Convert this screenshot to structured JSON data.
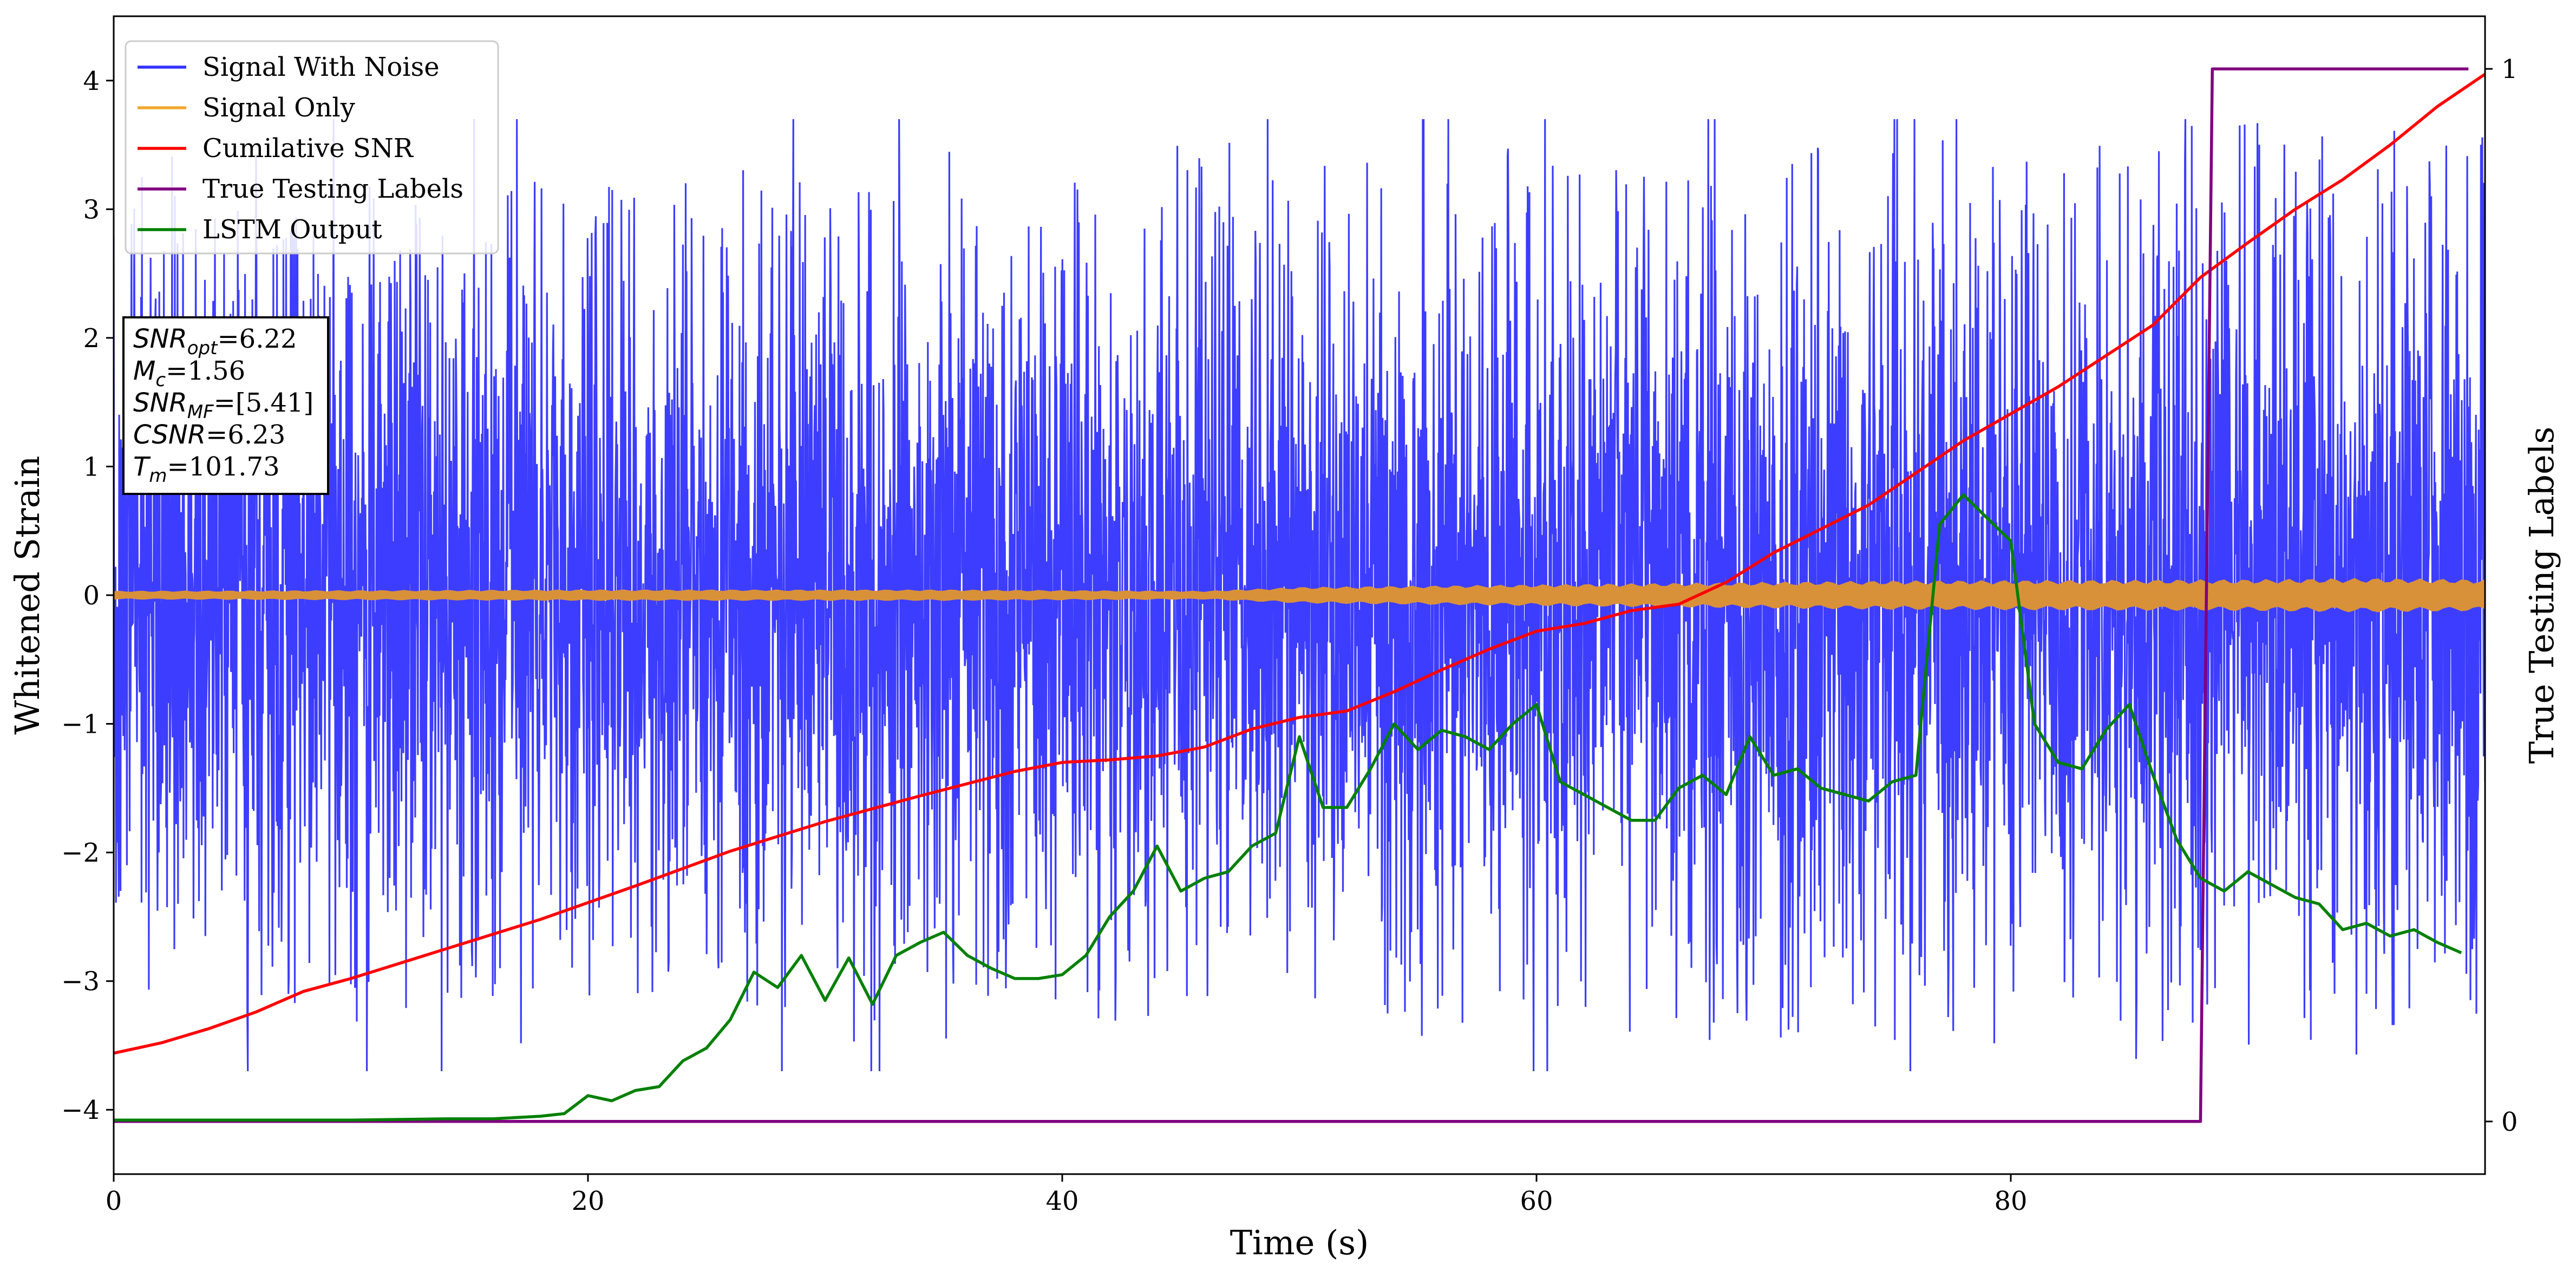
{
  "chart_data": {
    "type": "line",
    "xlabel": "Time (s)",
    "ylabel": "Whitened Strain",
    "y2label": "True Testing Labels",
    "xlim": [
      0,
      100
    ],
    "ylim": [
      -4.5,
      4.5
    ],
    "y2lim": [
      -0.05,
      1.05
    ],
    "xticks": [
      0,
      20,
      40,
      60,
      80
    ],
    "yticks": [
      -4,
      -3,
      -2,
      -1,
      0,
      1,
      2,
      3,
      4
    ],
    "y2ticks": [
      0,
      1
    ],
    "grid": false,
    "legend_position": "top-left",
    "annotation_box": [
      {
        "sym": "SNR",
        "sub": "opt",
        "val": "=6.22"
      },
      {
        "sym": "M",
        "sub": "c",
        "val": "=1.56"
      },
      {
        "sym": "SNR",
        "sub": "MF",
        "val": "=[5.41]"
      },
      {
        "sym": "CSNR",
        "sub": "",
        "val": "=6.23"
      },
      {
        "sym": "T",
        "sub": "m",
        "val": "=101.73"
      }
    ],
    "series": [
      {
        "name": "Signal With Noise",
        "color": "#3333ff",
        "axis": "left",
        "style": "noise",
        "noise_amplitude": [
          [
            0,
            2.6
          ],
          [
            100,
            3.1
          ]
        ],
        "noise_min": -3.7,
        "noise_max": 3.7
      },
      {
        "name": "Signal Only",
        "color": "#f0a830",
        "axis": "left",
        "style": "band",
        "envelope_x": [
          0,
          20,
          35,
          46,
          50,
          55,
          65,
          75,
          90,
          95,
          100
        ],
        "envelope_y": [
          0.03,
          0.04,
          0.04,
          0.03,
          0.06,
          0.07,
          0.09,
          0.11,
          0.12,
          0.13,
          0.12
        ]
      },
      {
        "name": "Cumilative SNR",
        "color": "#ff0000",
        "axis": "left",
        "style": "line",
        "x": [
          0,
          2,
          4,
          6,
          8,
          10,
          14,
          18,
          22,
          26,
          30,
          34,
          38,
          40,
          42,
          44,
          46,
          48,
          50,
          52,
          54,
          56,
          58,
          60,
          62,
          64,
          66,
          68,
          70,
          74,
          78,
          82,
          86,
          88,
          90,
          92,
          94,
          96,
          98,
          100
        ],
        "y": [
          -3.56,
          -3.48,
          -3.37,
          -3.24,
          -3.08,
          -2.98,
          -2.75,
          -2.52,
          -2.26,
          -1.99,
          -1.76,
          -1.56,
          -1.37,
          -1.3,
          -1.28,
          -1.25,
          -1.18,
          -1.04,
          -0.95,
          -0.9,
          -0.75,
          -0.58,
          -0.42,
          -0.28,
          -0.22,
          -0.12,
          -0.07,
          0.1,
          0.33,
          0.7,
          1.2,
          1.62,
          2.1,
          2.47,
          2.74,
          3.0,
          3.23,
          3.5,
          3.8,
          4.05
        ]
      },
      {
        "name": "True Testing Labels",
        "color": "#800080",
        "axis": "right",
        "style": "line",
        "x": [
          0,
          88.0,
          88.5,
          99.3
        ],
        "y": [
          0,
          0,
          1,
          1
        ]
      },
      {
        "name": "LSTM Output",
        "color": "#008000",
        "axis": "left",
        "style": "line",
        "x": [
          0,
          10,
          14,
          16,
          18,
          19,
          20,
          21,
          22,
          23,
          24,
          25,
          26,
          27,
          28,
          29,
          30,
          31,
          32,
          33,
          34,
          35,
          36,
          37,
          38,
          39,
          40,
          41,
          42,
          43,
          44,
          45,
          46,
          47,
          48,
          49,
          50,
          51,
          52,
          53,
          54,
          55,
          56,
          57,
          58,
          59,
          60,
          61,
          62,
          63,
          64,
          65,
          66,
          67,
          68,
          69,
          70,
          71,
          72,
          73,
          74,
          75,
          76,
          77,
          78,
          79,
          80,
          81,
          82,
          83,
          84,
          85,
          86,
          87,
          88,
          89,
          90,
          91,
          92,
          93,
          94,
          95,
          96,
          97,
          98,
          99
        ],
        "y": [
          -4.08,
          -4.08,
          -4.07,
          -4.07,
          -4.05,
          -4.03,
          -3.89,
          -3.93,
          -3.85,
          -3.82,
          -3.62,
          -3.52,
          -3.3,
          -2.93,
          -3.05,
          -2.8,
          -3.15,
          -2.82,
          -3.18,
          -2.8,
          -2.7,
          -2.62,
          -2.8,
          -2.9,
          -2.98,
          -2.98,
          -2.95,
          -2.8,
          -2.5,
          -2.3,
          -1.95,
          -2.3,
          -2.2,
          -2.15,
          -1.95,
          -1.85,
          -1.1,
          -1.65,
          -1.65,
          -1.35,
          -1.0,
          -1.2,
          -1.05,
          -1.1,
          -1.2,
          -1.0,
          -0.85,
          -1.45,
          -1.55,
          -1.65,
          -1.75,
          -1.75,
          -1.5,
          -1.4,
          -1.55,
          -1.1,
          -1.4,
          -1.35,
          -1.5,
          -1.55,
          -1.6,
          -1.45,
          -1.4,
          0.55,
          0.78,
          0.6,
          0.42,
          -1.0,
          -1.3,
          -1.35,
          -1.05,
          -0.85,
          -1.4,
          -1.9,
          -2.2,
          -2.3,
          -2.15,
          -2.25,
          -2.35,
          -2.4,
          -2.6,
          -2.55,
          -2.65,
          -2.6,
          -2.7,
          -2.78
        ]
      }
    ]
  }
}
